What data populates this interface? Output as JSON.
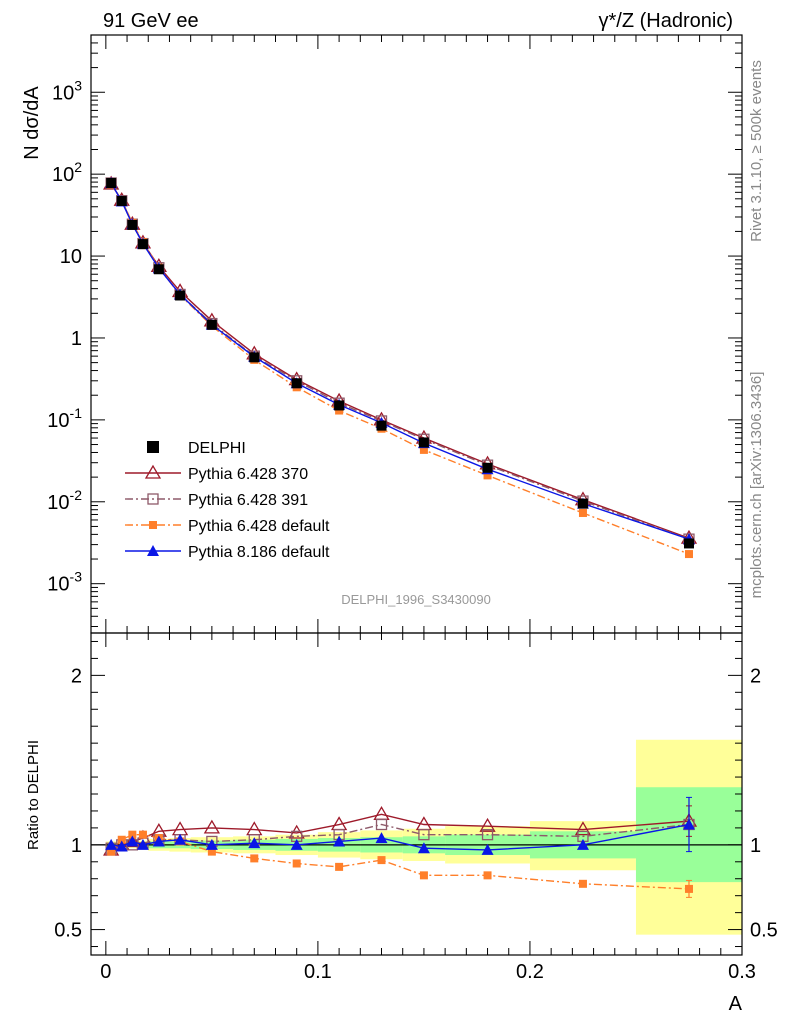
{
  "header": {
    "left": "91 GeV ee",
    "right": "γ*/Z (Hadronic)"
  },
  "side_text": {
    "rivet": "Rivet 3.1.10, ≥ 500k events",
    "mcplots": "mcplots.cern.ch [arXiv:1306.3436]"
  },
  "watermark": "DELPHI_1996_S3430090",
  "chart_data": [
    {
      "panel": "main",
      "type": "line",
      "yscale": "log",
      "ylabel": "N dσ/dA",
      "xlabel": "A",
      "xlim": [
        -0.007,
        0.3
      ],
      "ylim": [
        0.00025,
        5000
      ],
      "x": [
        0.0025,
        0.0075,
        0.0125,
        0.0175,
        0.025,
        0.035,
        0.05,
        0.07,
        0.09,
        0.11,
        0.13,
        0.15,
        0.18,
        0.225,
        0.275
      ],
      "ytick_labels": [
        "10^-3",
        "10^-2",
        "10^-1",
        "1",
        "10",
        "10^2",
        "10^3"
      ],
      "series": [
        {
          "name": "DELPHI",
          "role": "data",
          "color": "#000000",
          "values": [
            78,
            47,
            24,
            14,
            6.9,
            3.3,
            1.45,
            0.58,
            0.28,
            0.15,
            0.085,
            0.053,
            0.026,
            0.0095,
            0.0031
          ]
        },
        {
          "name": "Pythia 6.428 370",
          "color": "#9e1a2a",
          "marker": "open-triangle",
          "dash": "solid",
          "values": [
            76,
            48,
            24.5,
            14.5,
            7.5,
            3.7,
            1.62,
            0.64,
            0.31,
            0.17,
            0.1,
            0.06,
            0.029,
            0.0106,
            0.0036
          ]
        },
        {
          "name": "Pythia 6.428 391",
          "color": "#8e5a6a",
          "marker": "open-square",
          "dash": "dash-dot",
          "values": [
            78,
            47.5,
            24.5,
            14.2,
            7.2,
            3.4,
            1.5,
            0.6,
            0.3,
            0.16,
            0.097,
            0.058,
            0.028,
            0.0102,
            0.0035
          ]
        },
        {
          "name": "Pythia 6.428 default",
          "color": "#ff7f2a",
          "marker": "filled-square",
          "dash": "dash-dot",
          "values": [
            75,
            48,
            25.5,
            14.8,
            7.2,
            3.35,
            1.4,
            0.54,
            0.25,
            0.13,
            0.078,
            0.043,
            0.021,
            0.0073,
            0.0023
          ]
        },
        {
          "name": "Pythia 8.186 default",
          "color": "#0a16e6",
          "marker": "filled-triangle",
          "dash": "solid",
          "values": [
            78,
            46.5,
            24.5,
            14.2,
            7.1,
            3.4,
            1.45,
            0.59,
            0.28,
            0.153,
            0.092,
            0.052,
            0.025,
            0.0095,
            0.0035
          ]
        }
      ]
    },
    {
      "panel": "ratio",
      "type": "line",
      "ylabel": "Ratio to DELPHI",
      "xlabel": "A",
      "xlim": [
        -0.007,
        0.3
      ],
      "ylim": [
        0.35,
        2.25
      ],
      "yticks": [
        0.5,
        1,
        2
      ],
      "ytick_labels": [
        "0.5",
        "1",
        "2"
      ],
      "xticks": [
        0,
        0.1,
        0.2,
        0.3
      ],
      "xtick_labels": [
        "0",
        "0.1",
        "0.2",
        "0.3"
      ],
      "x": [
        0.0025,
        0.0075,
        0.0125,
        0.0175,
        0.025,
        0.035,
        0.05,
        0.07,
        0.09,
        0.11,
        0.13,
        0.15,
        0.18,
        0.225,
        0.275
      ],
      "bin_edges": [
        0,
        0.005,
        0.01,
        0.015,
        0.02,
        0.03,
        0.04,
        0.06,
        0.08,
        0.1,
        0.12,
        0.14,
        0.16,
        0.2,
        0.25,
        0.3
      ],
      "band_green": [
        [
          0.99,
          1.01
        ],
        [
          0.99,
          1.01
        ],
        [
          0.99,
          1.01
        ],
        [
          0.985,
          1.015
        ],
        [
          0.98,
          1.02
        ],
        [
          0.98,
          1.02
        ],
        [
          0.975,
          1.025
        ],
        [
          0.97,
          1.03
        ],
        [
          0.965,
          1.035
        ],
        [
          0.96,
          1.04
        ],
        [
          0.955,
          1.045
        ],
        [
          0.95,
          1.05
        ],
        [
          0.94,
          1.06
        ],
        [
          0.92,
          1.08
        ],
        [
          0.78,
          1.34
        ]
      ],
      "band_yellow": [
        [
          0.98,
          1.02
        ],
        [
          0.98,
          1.02
        ],
        [
          0.98,
          1.02
        ],
        [
          0.975,
          1.025
        ],
        [
          0.965,
          1.035
        ],
        [
          0.96,
          1.04
        ],
        [
          0.955,
          1.045
        ],
        [
          0.95,
          1.05
        ],
        [
          0.94,
          1.06
        ],
        [
          0.925,
          1.075
        ],
        [
          0.915,
          1.085
        ],
        [
          0.905,
          1.095
        ],
        [
          0.89,
          1.11
        ],
        [
          0.85,
          1.14
        ],
        [
          0.47,
          1.62
        ]
      ],
      "series": [
        {
          "name": "Pythia 6.428 370",
          "color": "#9e1a2a",
          "values": [
            0.97,
            1.0,
            1.02,
            1.04,
            1.08,
            1.09,
            1.1,
            1.09,
            1.07,
            1.12,
            1.18,
            1.12,
            1.11,
            1.09,
            1.14
          ]
        },
        {
          "name": "Pythia 6.428 391",
          "color": "#8e5a6a",
          "values": [
            0.98,
            1.0,
            1.0,
            1.01,
            1.03,
            1.03,
            1.02,
            1.03,
            1.05,
            1.06,
            1.12,
            1.06,
            1.06,
            1.05,
            1.12
          ]
        },
        {
          "name": "Pythia 6.428 default",
          "color": "#ff7f2a",
          "values": [
            0.96,
            1.03,
            1.06,
            1.06,
            1.04,
            1.02,
            0.96,
            0.92,
            0.89,
            0.87,
            0.91,
            0.82,
            0.82,
            0.77,
            0.74
          ]
        },
        {
          "name": "Pythia 8.186 default",
          "color": "#0a16e6",
          "values": [
            1.0,
            0.99,
            1.02,
            1.0,
            1.02,
            1.03,
            1.0,
            1.01,
            1.0,
            1.02,
            1.04,
            0.98,
            0.97,
            1.0,
            1.12
          ]
        }
      ]
    }
  ]
}
